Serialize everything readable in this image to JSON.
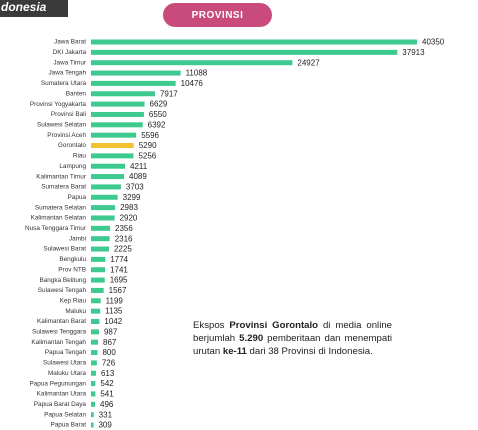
{
  "header": {
    "fragment": "donesia",
    "button": "PROVINSI"
  },
  "chart_data": {
    "type": "bar",
    "orientation": "horizontal",
    "categories": [
      "Jawa Barat",
      "DKI Jakarta",
      "Jawa Timur",
      "Jawa Tengah",
      "Sumatera Utara",
      "Banten",
      "Provinsi Yogyakarta",
      "Provinsi Bali",
      "Sulawesi Selatan",
      "Provinsi Aceh",
      "Gorontalo",
      "Riau",
      "Lampung",
      "Kalimantan Timur",
      "Sumatera Barat",
      "Papua",
      "Sumatera Selatan",
      "Kalimantan Selatan",
      "Nusa Tenggara Timur",
      "Jambi",
      "Sulawesi Barat",
      "Bengkulu",
      "Prov NTB",
      "Bangka Belitung",
      "Sulawesi Tengah",
      "Kep Riau",
      "Maluku",
      "Kalimantan Barat",
      "Sulawesi Tenggara",
      "Kalimantan Tengah",
      "Papua Tengah",
      "Sulawesi Utara",
      "Maluku Utara",
      "Papua Pegunungan",
      "Kalimantan Utara",
      "Papua Barat Daya",
      "Papua Selatan",
      "Papua Barat"
    ],
    "values": [
      40350,
      37913,
      24927,
      11088,
      10476,
      7917,
      6629,
      6550,
      6392,
      5596,
      5290,
      5256,
      4211,
      4089,
      3703,
      3299,
      2983,
      2920,
      2356,
      2316,
      2225,
      1774,
      1741,
      1695,
      1567,
      1199,
      1135,
      1042,
      987,
      867,
      800,
      726,
      613,
      542,
      541,
      496,
      331,
      309
    ],
    "color": "#3ec98f",
    "highlight_index": 10,
    "highlight_color": "#f2c230",
    "annotation": [
      {
        "text": "Ekspos ",
        "bold": false
      },
      {
        "text": "Provinsi Gorontalo",
        "bold": true
      },
      {
        "text": " di media online berjumlah ",
        "bold": false
      },
      {
        "text": "5.290",
        "bold": true
      },
      {
        "text": " pemberitaan dan menempati urutan ",
        "bold": false
      },
      {
        "text": "ke-11",
        "bold": true
      },
      {
        "text": " dari 38 Provinsi di Indonesia.",
        "bold": false
      }
    ]
  }
}
